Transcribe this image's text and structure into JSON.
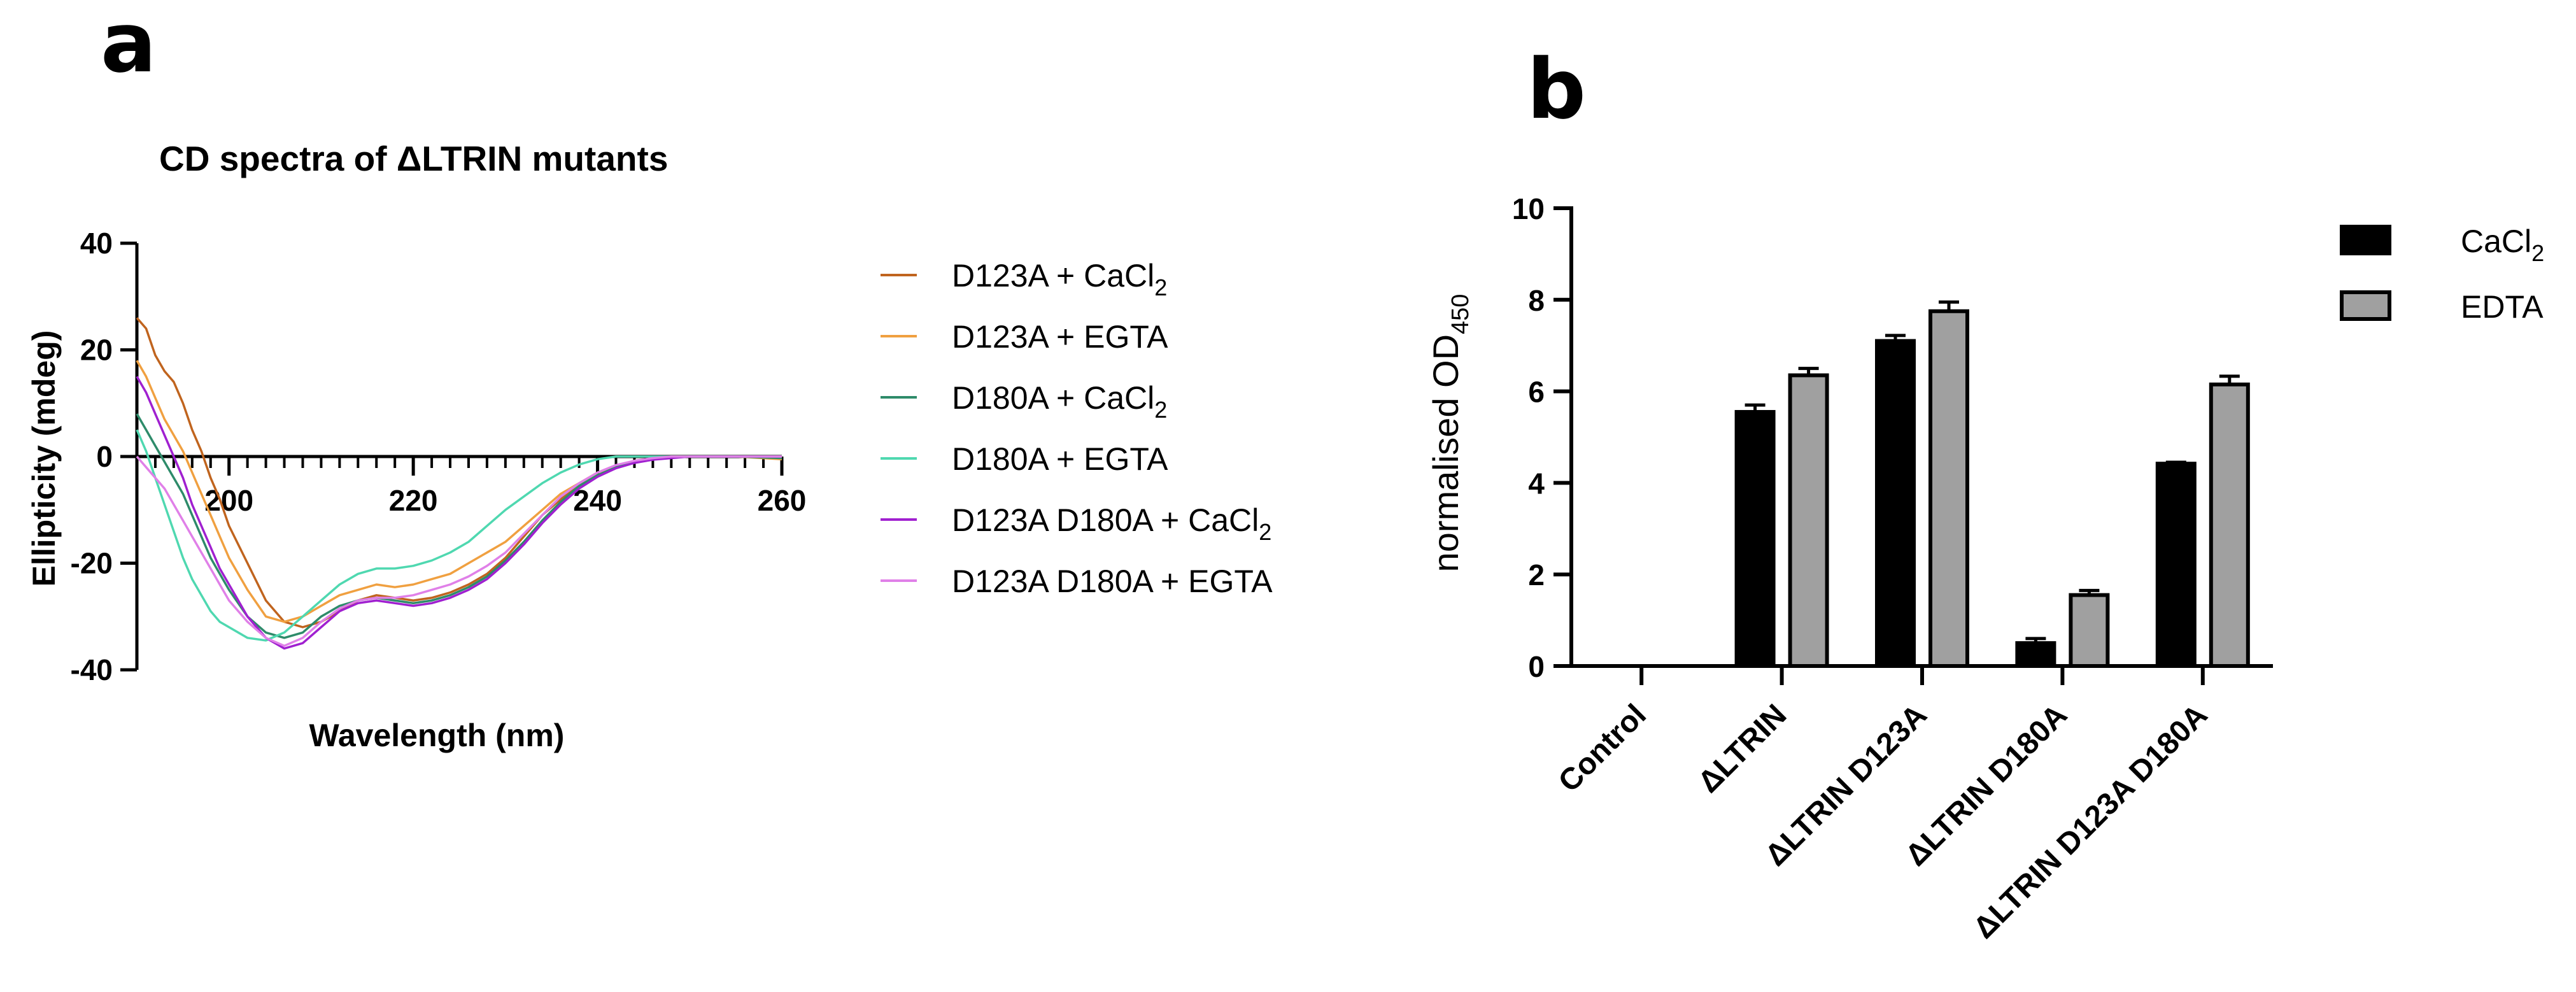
{
  "chart_data": [
    {
      "panel_letter": "a",
      "type": "line",
      "title": "CD spectra of ΔLTRIN mutants",
      "xlabel": "Wavelength (nm)",
      "ylabel": "Ellipticity (mdeg)",
      "xlim": [
        190,
        260
      ],
      "ylim": [
        -40,
        40
      ],
      "x_ticks": [
        200,
        220,
        240,
        260
      ],
      "y_ticks": [
        40,
        20,
        0,
        -20,
        -40
      ],
      "x_tick_labels": [
        "200",
        "220",
        "240",
        "260"
      ],
      "y_tick_labels": [
        "40",
        "20",
        "0",
        "-20",
        "-40"
      ],
      "grid": false,
      "legend_position": "right",
      "series": [
        {
          "name": "D123A + CaCl",
          "subscript": "2",
          "color": "#c0641e",
          "x": [
            190,
            191,
            192,
            193,
            194,
            195,
            196,
            197,
            198,
            199,
            200,
            202,
            204,
            206,
            208,
            210,
            212,
            214,
            216,
            218,
            220,
            222,
            224,
            226,
            228,
            230,
            232,
            234,
            236,
            238,
            240,
            242,
            244,
            246,
            248,
            250,
            255,
            260
          ],
          "y": [
            26,
            24,
            19,
            16,
            14,
            10,
            5,
            1,
            -4,
            -8,
            -13,
            -20,
            -27,
            -31,
            -32,
            -31,
            -29,
            -27,
            -26,
            -26.5,
            -27,
            -26.5,
            -25.5,
            -24,
            -22,
            -19,
            -15,
            -11,
            -8,
            -5.5,
            -3.5,
            -2,
            -1,
            -0.5,
            -0.2,
            0,
            0,
            0
          ]
        },
        {
          "name": "D123A + EGTA",
          "subscript": "",
          "color": "#f0a040",
          "x": [
            190,
            191,
            192,
            193,
            194,
            195,
            196,
            197,
            198,
            199,
            200,
            202,
            204,
            206,
            208,
            210,
            212,
            214,
            216,
            218,
            220,
            222,
            224,
            226,
            228,
            230,
            232,
            234,
            236,
            238,
            240,
            242,
            244,
            246,
            248,
            250,
            255,
            260
          ],
          "y": [
            18,
            15,
            11,
            7,
            4,
            1,
            -3,
            -7,
            -11,
            -15,
            -19,
            -25,
            -30,
            -31,
            -30,
            -28,
            -26,
            -25,
            -24,
            -24.5,
            -24,
            -23,
            -22,
            -20,
            -18,
            -16,
            -13,
            -10,
            -7,
            -5,
            -3,
            -1.8,
            -0.8,
            -0.3,
            0,
            0,
            0,
            -0.5
          ]
        },
        {
          "name": "D180A + CaCl",
          "subscript": "2",
          "color": "#2e8b6a",
          "x": [
            190,
            191,
            192,
            193,
            194,
            195,
            196,
            197,
            198,
            199,
            200,
            202,
            204,
            206,
            208,
            210,
            212,
            214,
            216,
            218,
            220,
            222,
            224,
            226,
            228,
            230,
            232,
            234,
            236,
            238,
            240,
            242,
            244,
            246,
            248,
            250,
            255,
            260
          ],
          "y": [
            8,
            5,
            2,
            -1,
            -4,
            -7,
            -11,
            -15,
            -19,
            -22,
            -25,
            -30,
            -33,
            -34,
            -33,
            -30,
            -28,
            -27,
            -26.5,
            -27,
            -27.5,
            -27,
            -26,
            -24.5,
            -22.5,
            -19.5,
            -16,
            -12,
            -8.5,
            -5.5,
            -3.5,
            -2,
            -1,
            -0.5,
            -0.2,
            0,
            0,
            -0.3
          ]
        },
        {
          "name": "D180A + EGTA",
          "subscript": "",
          "color": "#4fd8b0",
          "x": [
            190,
            191,
            192,
            193,
            194,
            195,
            196,
            197,
            198,
            199,
            200,
            202,
            204,
            206,
            208,
            210,
            212,
            214,
            216,
            218,
            220,
            222,
            224,
            226,
            228,
            230,
            232,
            234,
            236,
            238,
            240,
            242,
            244,
            246,
            248,
            250,
            255,
            260
          ],
          "y": [
            5,
            1,
            -4,
            -9,
            -14,
            -19,
            -23,
            -26,
            -29,
            -31,
            -32,
            -34,
            -34.5,
            -33,
            -30,
            -27,
            -24,
            -22,
            -21,
            -21,
            -20.5,
            -19.5,
            -18,
            -16,
            -13,
            -10,
            -7.5,
            -5,
            -3,
            -1.5,
            -0.5,
            0,
            0,
            0,
            0,
            0,
            0,
            0
          ]
        },
        {
          "name": "D123A D180A + CaCl",
          "subscript": "2",
          "color": "#a020d0",
          "x": [
            190,
            191,
            192,
            193,
            194,
            195,
            196,
            197,
            198,
            199,
            200,
            202,
            204,
            206,
            208,
            210,
            212,
            214,
            216,
            218,
            220,
            222,
            224,
            226,
            228,
            230,
            232,
            234,
            236,
            238,
            240,
            242,
            244,
            246,
            248,
            250,
            255,
            260
          ],
          "y": [
            15,
            12,
            8,
            4,
            0,
            -4,
            -9,
            -13,
            -17,
            -21,
            -24,
            -30,
            -34,
            -36,
            -35,
            -32,
            -29,
            -27.5,
            -27,
            -27.5,
            -28,
            -27.5,
            -26.5,
            -25,
            -23,
            -20,
            -16.5,
            -12.5,
            -9,
            -6,
            -3.8,
            -2.2,
            -1.2,
            -0.6,
            -0.3,
            0,
            0,
            0
          ]
        },
        {
          "name": "D123A D180A + EGTA",
          "subscript": "",
          "color": "#e080e8",
          "x": [
            190,
            191,
            192,
            193,
            194,
            195,
            196,
            197,
            198,
            199,
            200,
            202,
            204,
            206,
            208,
            210,
            212,
            214,
            216,
            218,
            220,
            222,
            224,
            226,
            228,
            230,
            232,
            234,
            236,
            238,
            240,
            242,
            244,
            246,
            248,
            250,
            255,
            260
          ],
          "y": [
            0,
            -2,
            -4,
            -6,
            -9,
            -12,
            -15,
            -18,
            -21,
            -24,
            -27,
            -31,
            -34,
            -35.5,
            -34,
            -31,
            -28.5,
            -27,
            -26.5,
            -26.5,
            -26,
            -25,
            -24,
            -22.5,
            -20.5,
            -18,
            -14.5,
            -11,
            -7.5,
            -5,
            -3,
            -1.6,
            -0.8,
            -0.3,
            0,
            0,
            0,
            0
          ]
        }
      ]
    },
    {
      "panel_letter": "b",
      "type": "bar",
      "title": "",
      "xlabel": "",
      "ylabel": "normalised OD",
      "ylabel_subscript": "450",
      "ylim": [
        0,
        10
      ],
      "y_ticks": [
        0,
        2,
        4,
        6,
        8,
        10
      ],
      "y_tick_labels": [
        "0",
        "2",
        "4",
        "6",
        "8",
        "10"
      ],
      "categories": [
        "Control",
        "ΔLTRIN",
        "ΔLTRIN D123A",
        "ΔLTRIN D180A",
        "ΔLTRIN D123A D180A"
      ],
      "legend_position": "top-right",
      "series": [
        {
          "name": "CaCl",
          "subscript": "2",
          "color": "#000000",
          "values": [
            0,
            5.55,
            7.1,
            0.5,
            4.42
          ],
          "errors": [
            0,
            0.15,
            0.12,
            0.1,
            0.03
          ]
        },
        {
          "name": "EDTA",
          "subscript": "",
          "color": "#a0a0a0",
          "values": [
            0,
            6.35,
            7.75,
            1.55,
            6.15
          ],
          "errors": [
            0,
            0.15,
            0.2,
            0.1,
            0.18
          ]
        }
      ]
    }
  ]
}
